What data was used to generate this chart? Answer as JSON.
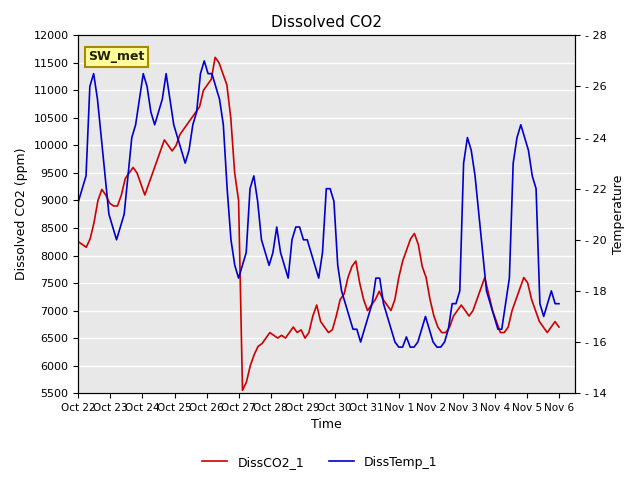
{
  "title": "Dissolved CO2",
  "xlabel": "Time",
  "ylabel_left": "Dissolved CO2 (ppm)",
  "ylabel_right": "Temperature",
  "annotation_text": "SW_met",
  "legend_labels": [
    "DissCO2_1",
    "DissTemp_1"
  ],
  "co2_color": "#cc0000",
  "temp_color": "#0000cc",
  "ylim_left": [
    5500,
    12000
  ],
  "ylim_right": [
    14,
    28
  ],
  "bg_color": "#e8e8e8",
  "grid_color": "#ffffff",
  "xtick_labels": [
    "Oct 22",
    "Oct 23",
    "Oct 24",
    "Oct 25",
    "Oct 26",
    "Oct 27",
    "Oct 28",
    "Oct 29",
    "Oct 30",
    "Oct 31",
    "Nov 1",
    "Nov 2",
    "Nov 3",
    "Nov 4",
    "Nov 5",
    "Nov 6"
  ],
  "co2_data": [
    8250,
    8200,
    8150,
    8300,
    8600,
    9000,
    9200,
    9100,
    8950,
    8900,
    8900,
    9100,
    9400,
    9500,
    9600,
    9500,
    9300,
    9100,
    9300,
    9500,
    9700,
    9900,
    10100,
    10000,
    9900,
    10000,
    10200,
    10300,
    10400,
    10500,
    10600,
    10700,
    11000,
    11100,
    11200,
    11600,
    11500,
    11300,
    11100,
    10500,
    9500,
    9000,
    5550,
    5700,
    6000,
    6200,
    6350,
    6400,
    6500,
    6600,
    6550,
    6500,
    6550,
    6500,
    6600,
    6700,
    6600,
    6650,
    6500,
    6600,
    6900,
    7100,
    6800,
    6700,
    6600,
    6650,
    6900,
    7200,
    7300,
    7600,
    7800,
    7900,
    7500,
    7200,
    7000,
    7100,
    7200,
    7350,
    7200,
    7100,
    7000,
    7200,
    7600,
    7900,
    8100,
    8300,
    8400,
    8200,
    7800,
    7600,
    7200,
    6900,
    6700,
    6600,
    6600,
    6700,
    6900,
    7000,
    7100,
    7000,
    6900,
    7000,
    7200,
    7400,
    7600,
    7300,
    7000,
    6800,
    6600,
    6600,
    6700,
    7000,
    7200,
    7400,
    7600,
    7500,
    7200,
    7000,
    6800,
    6700,
    6600,
    6700,
    6800,
    6700
  ],
  "temp_data": [
    21.5,
    22.0,
    22.5,
    26.0,
    26.5,
    25.5,
    24.0,
    22.5,
    21.0,
    20.5,
    20.0,
    20.5,
    21.0,
    22.5,
    24.0,
    24.5,
    25.5,
    26.5,
    26.0,
    25.0,
    24.5,
    25.0,
    25.5,
    26.5,
    25.5,
    24.5,
    24.0,
    23.5,
    23.0,
    23.5,
    24.5,
    25.0,
    26.5,
    27.0,
    26.5,
    26.5,
    26.0,
    25.5,
    24.5,
    22.0,
    20.0,
    19.0,
    18.5,
    19.0,
    19.5,
    22.0,
    22.5,
    21.5,
    20.0,
    19.5,
    19.0,
    19.5,
    20.5,
    19.5,
    19.0,
    18.5,
    20.0,
    20.5,
    20.5,
    20.0,
    20.0,
    19.5,
    19.0,
    18.5,
    19.5,
    22.0,
    22.0,
    21.5,
    19.0,
    18.0,
    17.5,
    17.0,
    16.5,
    16.5,
    16.0,
    16.5,
    17.0,
    17.5,
    18.5,
    18.5,
    17.5,
    17.0,
    16.5,
    16.0,
    15.8,
    15.8,
    16.2,
    15.8,
    15.8,
    16.0,
    16.5,
    17.0,
    16.5,
    16.0,
    15.8,
    15.8,
    16.0,
    16.5,
    17.5,
    17.5,
    18.0,
    23.0,
    24.0,
    23.5,
    22.5,
    21.0,
    19.5,
    18.0,
    17.5,
    17.0,
    16.5,
    16.5,
    17.5,
    18.5,
    23.0,
    24.0,
    24.5,
    24.0,
    23.5,
    22.5,
    22.0,
    17.5,
    17.0,
    17.5,
    18.0,
    17.5,
    17.5
  ]
}
